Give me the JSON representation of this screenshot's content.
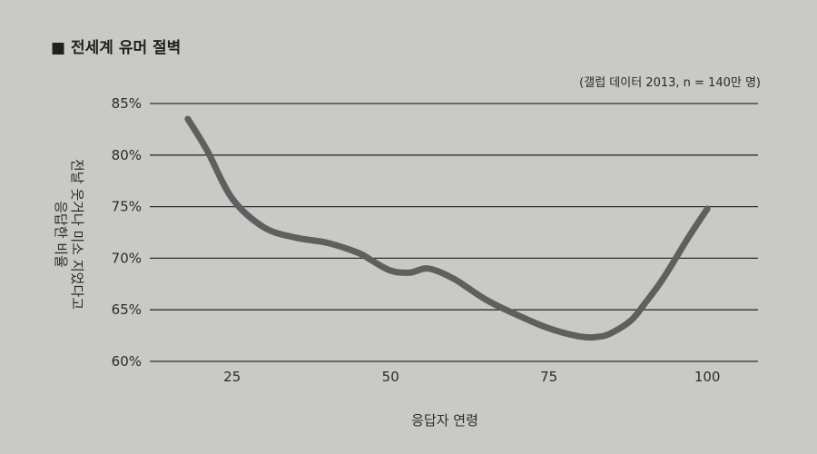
{
  "page": {
    "title": "전세계 유머 절벽",
    "title_marker": "■"
  },
  "chart_data": {
    "type": "line",
    "title": "전세계 유머 절벽",
    "source_note": "(갤럽 데이터 2013, n = 140만 명)",
    "xlabel": "응답자 연령",
    "ylabel": [
      "전날 웃거나 미소 지었다고",
      "응답한 비율"
    ],
    "xlim": [
      12,
      108
    ],
    "ylim": [
      60,
      85
    ],
    "x_ticks": [
      25,
      50,
      75,
      100
    ],
    "y_ticks": [
      60,
      65,
      70,
      75,
      80,
      85
    ],
    "y_tick_labels": [
      "60%",
      "65%",
      "70%",
      "75%",
      "80%",
      "85%"
    ],
    "grid": "horizontal",
    "line_color": "#5f5f5f",
    "series": [
      {
        "x": [
          18,
          21,
          25,
          30,
          35,
          40,
          45,
          47,
          50,
          53,
          56,
          60,
          65,
          70,
          75,
          80,
          83,
          85,
          88,
          90,
          93,
          97,
          100
        ],
        "values": [
          83.5,
          80.5,
          75.8,
          73.0,
          72.0,
          71.5,
          70.5,
          69.8,
          68.8,
          68.6,
          69.0,
          68.0,
          66.0,
          64.5,
          63.2,
          62.4,
          62.4,
          62.8,
          64.0,
          65.5,
          68.0,
          72.0,
          74.8
        ]
      }
    ]
  }
}
